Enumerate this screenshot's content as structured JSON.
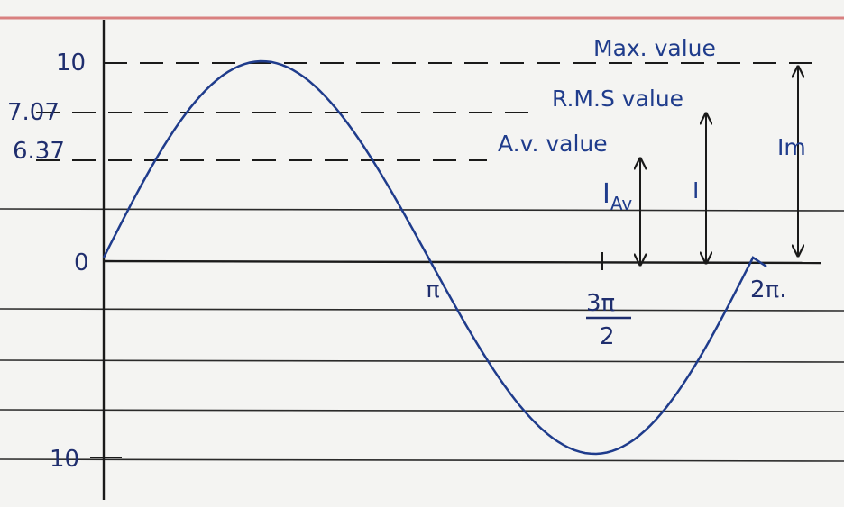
{
  "y_labels": [
    "10",
    "7.07",
    "6.37",
    "0",
    "10"
  ],
  "x_labels": {
    "pi": "π",
    "three_pi_half": {
      "numerator": "3π",
      "denominator": "2"
    },
    "two_pi": "2π."
  },
  "annotations": {
    "max": "Max. value",
    "rms": "R.M.S value",
    "avg": "A.v. value",
    "i_av": {
      "main": "I",
      "sub": "Av"
    },
    "i": "I",
    "im": "Im"
  }
}
